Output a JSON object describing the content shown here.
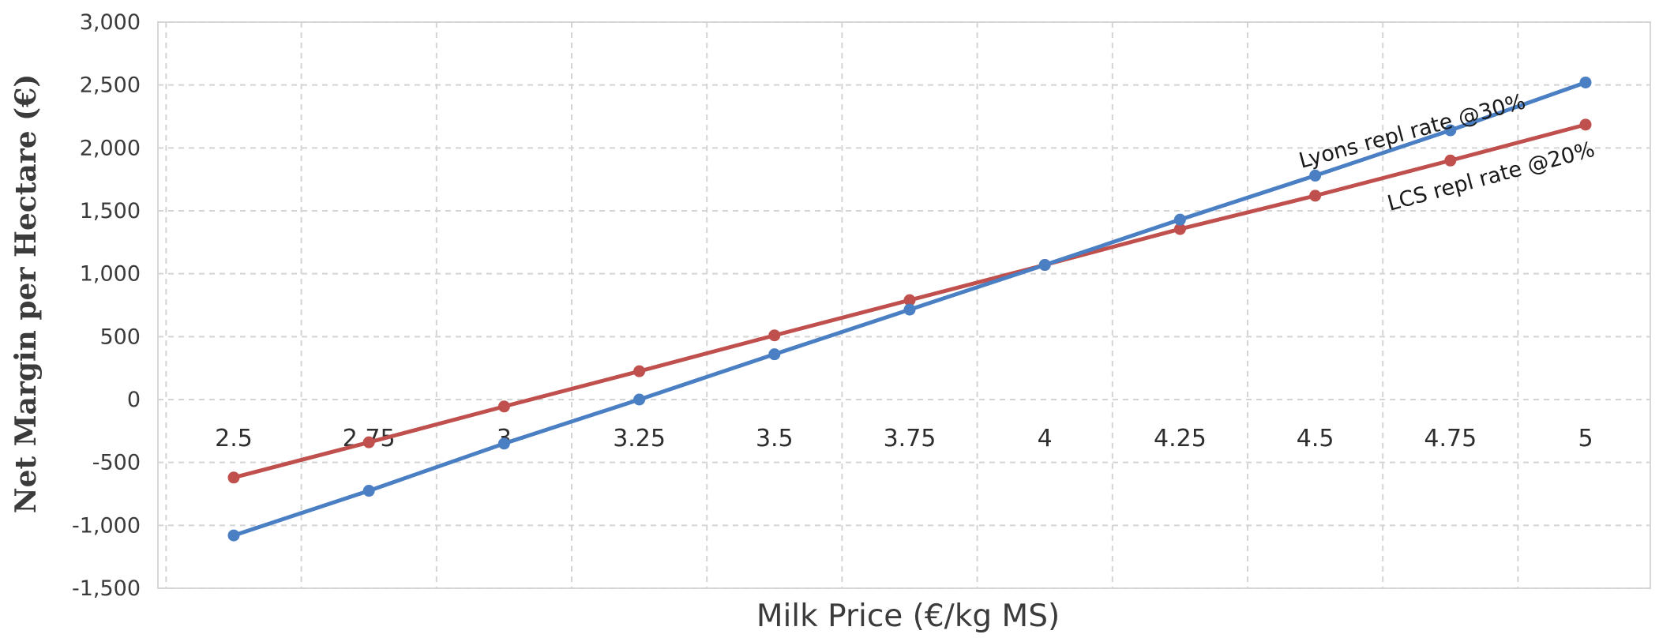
{
  "chart_data": {
    "type": "line",
    "xlabel": "Milk Price (€/kg MS)",
    "ylabel": "Net Margin per Hectare (€)",
    "categories": [
      "2.5",
      "2.75",
      "3",
      "3.25",
      "3.5",
      "3.75",
      "4",
      "4.25",
      "4.5",
      "4.75",
      "5"
    ],
    "ylim": [
      -1500,
      3000
    ],
    "yticks": [
      -1500,
      -1000,
      -500,
      0,
      500,
      1000,
      1500,
      2000,
      2500,
      3000
    ],
    "ytick_labels": [
      "-1,500",
      "-1,000",
      "-500",
      "0",
      "500",
      "1,000",
      "1,500",
      "2,000",
      "2,500",
      "3,000"
    ],
    "grid": true,
    "series": [
      {
        "name": "Lyons repl rate @30%",
        "color": "#4a7fc4",
        "values": [
          -1080,
          -725,
          -350,
          0,
          360,
          715,
          1070,
          1430,
          1780,
          2140,
          2520
        ]
      },
      {
        "name": "LCS repl rate @20%",
        "color": "#c0504d",
        "values": [
          -620,
          -340,
          -55,
          225,
          510,
          790,
          1070,
          1355,
          1620,
          1900,
          2185
        ]
      }
    ]
  }
}
